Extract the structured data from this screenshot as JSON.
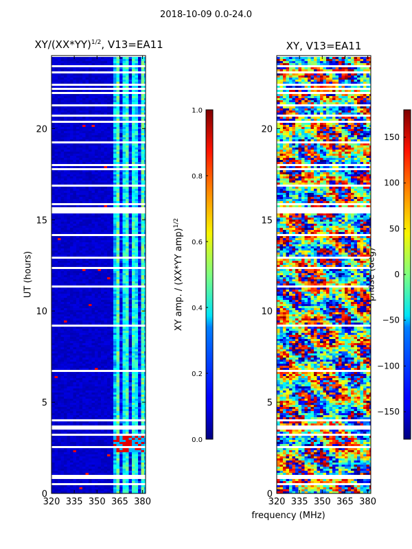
{
  "page": {
    "suptitle": "2018-10-09 0.0-24.0",
    "xlabel": "frequency (MHz)"
  },
  "chart_data": [
    {
      "type": "heatmap",
      "title": "XY/(XX*YY)",
      "title_exp": "1/2",
      "title_suffix": ", V13=EA11",
      "xlabel": "",
      "ylabel": "UT (hours)",
      "xlim": [
        320,
        382
      ],
      "ylim": [
        0,
        24
      ],
      "xticks": [
        320,
        335,
        350,
        365,
        380
      ],
      "yticks": [
        0,
        5,
        10,
        15,
        20
      ],
      "colormap": "jet",
      "note": "amplitude mostly low (~0.05) below 360 MHz, higher (0.3-0.6) between 360-380 MHz, with bright bursts near 2.5-3 h",
      "colorbar": {
        "label": "XY amp. / (XX*YY amp)",
        "label_exp": "1/2",
        "range": [
          0.0,
          1.0
        ],
        "ticks": [
          "0.0",
          "0.2",
          "0.4",
          "0.6",
          "0.8",
          "1.0"
        ]
      }
    },
    {
      "type": "heatmap",
      "title": "XY, V13=EA11",
      "xlabel": "frequency (MHz)",
      "ylabel": "",
      "xlim": [
        320,
        382
      ],
      "ylim": [
        0,
        24
      ],
      "xticks": [
        320,
        335,
        350,
        365,
        380
      ],
      "yticks": [
        0,
        5,
        10,
        15,
        20
      ],
      "colormap": "jet",
      "note": "phase varies widely across the full band, values between -180 and 180 deg",
      "colorbar": {
        "label": "phase (deg)",
        "range": [
          -180,
          180
        ],
        "ticks": [
          "−150",
          "−100",
          "−50",
          "0",
          "50",
          "100",
          "150"
        ]
      }
    }
  ]
}
